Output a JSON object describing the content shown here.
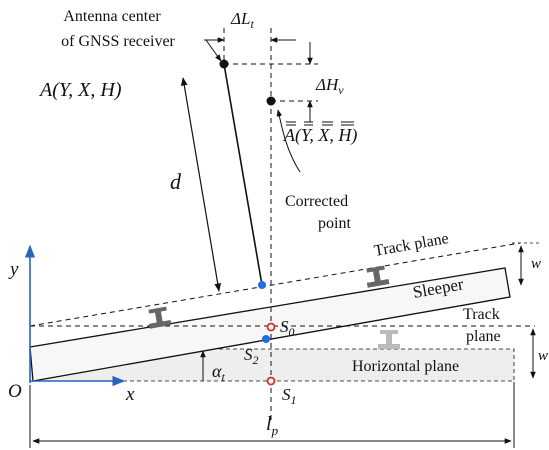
{
  "labels": {
    "antenna_line1": "Antenna center",
    "antenna_line2": "of GNSS receiver",
    "delta_L_sym": "ΔL",
    "delta_L_sub": "t",
    "delta_H_sym": "ΔH",
    "delta_H_sub": "v",
    "point_A": "A(Y, X, H)",
    "point_A_bar": "A(Y, X, H)",
    "d": "d",
    "corrected_line1": "Corrected",
    "corrected_line2": "point",
    "track_plane_top": "Track plane",
    "track_plane_right_line1": "Track",
    "track_plane_right_line2": "plane",
    "sleeper": "Sleeper",
    "w_top": "w",
    "w_right": "w",
    "horizontal_plane": "Horizontal plane",
    "y_axis": "y",
    "x_axis": "x",
    "origin": "O",
    "S0_sym": "S",
    "S0_sub": "0",
    "S1_sym": "S",
    "S1_sub": "1",
    "S2_sym": "S",
    "S2_sub": "2",
    "alpha_sym": "α",
    "alpha_sub": "t",
    "lp_sym": "l",
    "lp_sub": "p"
  },
  "colors": {
    "axis": "#2a63b8",
    "point_red": "#d42b2b",
    "point_blue": "#1f6fe0",
    "ink": "#111111",
    "rail": "#666666",
    "rail_light": "#bbbbbb",
    "band": "#eeeeee"
  }
}
